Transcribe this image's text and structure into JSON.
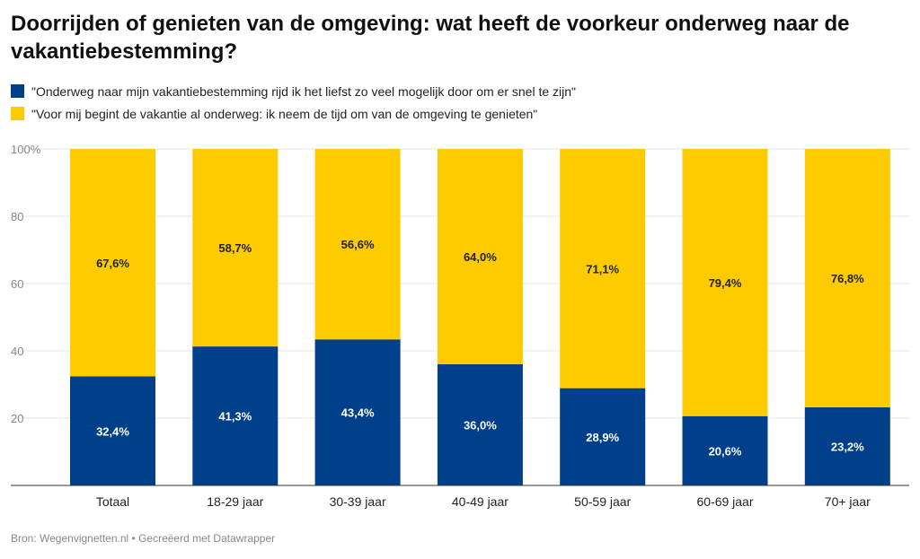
{
  "title": "Doorrijden of genieten van de omgeving: wat heeft de voorkeur onderweg naar de vakantiebestemming?",
  "legend": [
    {
      "label": "\"Onderweg naar mijn vakantiebestemming rijd ik het liefst zo veel mogelijk door om er snel te zijn\"",
      "color": "#003f8a"
    },
    {
      "label": "\"Voor mij begint de vakantie al onderweg: ik neem de tijd om van de omgeving te genieten\"",
      "color": "#fecb00"
    }
  ],
  "source": "Bron: Wegenvignetten.nl • Gecreëerd met Datawrapper",
  "chart_data": {
    "type": "bar",
    "stacked": true,
    "categories": [
      "Totaal",
      "18-29 jaar",
      "30-39 jaar",
      "40-49 jaar",
      "50-59 jaar",
      "60-69 jaar",
      "70+ jaar"
    ],
    "series": [
      {
        "color": "#003f8a",
        "values": [
          32.4,
          41.3,
          43.4,
          36.0,
          28.9,
          20.6,
          23.2
        ],
        "labels": [
          "32,4%",
          "41,3%",
          "43,4%",
          "36,0%",
          "28,9%",
          "20,6%",
          "23,2%"
        ]
      },
      {
        "color": "#fecb00",
        "values": [
          67.6,
          58.7,
          56.6,
          64.0,
          71.1,
          79.4,
          76.8
        ],
        "labels": [
          "67,6%",
          "58,7%",
          "56,6%",
          "64,0%",
          "71,1%",
          "79,4%",
          "76,8%"
        ]
      }
    ],
    "yticks": [
      {
        "value": 0,
        "label": ""
      },
      {
        "value": 20,
        "label": "20"
      },
      {
        "value": 40,
        "label": "40"
      },
      {
        "value": 60,
        "label": "60"
      },
      {
        "value": 80,
        "label": "80"
      },
      {
        "value": 100,
        "label": "100%"
      }
    ],
    "ylim": [
      0,
      100
    ],
    "grid": true,
    "legend_position": "top-left"
  }
}
